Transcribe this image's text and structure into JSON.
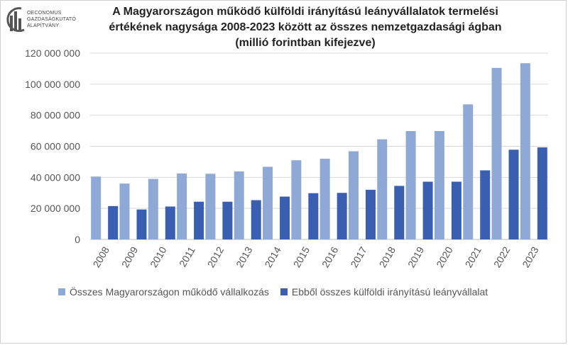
{
  "logo": {
    "lines": [
      "OECONOMUS",
      "GAZDASÁGKUTATÓ",
      "ALAPÍTVÁNY"
    ]
  },
  "chart_data": {
    "type": "bar",
    "title_lines": [
      "A Magyarországon működő külföldi irányítású leányvállalatok termelési",
      "értékének nagysága 2008-2023 között az összes nemzetgazdasági ágban",
      "(millió forintban kifejezve)"
    ],
    "categories": [
      "2008",
      "2009",
      "2010",
      "2011",
      "2012",
      "2013",
      "2014",
      "2015",
      "2016",
      "2017",
      "2018",
      "2019",
      "2020",
      "2021",
      "2022",
      "2023"
    ],
    "series": [
      {
        "name": "Összes Magyarországon működő vállalkozás",
        "color": "#8fa9d6",
        "values": [
          40500000,
          36000000,
          39000000,
          42500000,
          42300000,
          43800000,
          46800000,
          51000000,
          52000000,
          56800000,
          64500000,
          69800000,
          69800000,
          87000000,
          110500000,
          113500000
        ]
      },
      {
        "name": "Ebből összes külföldi irányítású leányvállalat",
        "color": "#3a5fb0",
        "values": [
          21500000,
          19300000,
          21200000,
          24300000,
          24300000,
          25300000,
          27600000,
          29800000,
          30000000,
          32000000,
          34500000,
          37200000,
          37200000,
          44500000,
          57800000,
          59300000
        ]
      }
    ],
    "y_ticks": [
      "0",
      "20 000 000",
      "40 000 000",
      "60 000 000",
      "80 000 000",
      "100 000 000",
      "120 000 000"
    ],
    "ylim": [
      0,
      120000000
    ],
    "grid": true,
    "legend_position": "bottom"
  }
}
